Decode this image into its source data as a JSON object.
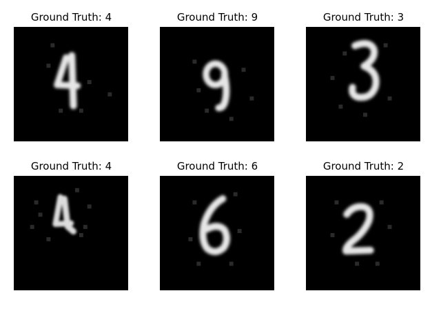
{
  "panels": [
    {
      "title": "Ground Truth: 4",
      "digit": "4"
    },
    {
      "title": "Ground Truth: 9",
      "digit": "9"
    },
    {
      "title": "Ground Truth: 3",
      "digit": "3"
    },
    {
      "title": "Ground Truth: 4",
      "digit": "4"
    },
    {
      "title": "Ground Truth: 6",
      "digit": "6"
    },
    {
      "title": "Ground Truth: 2",
      "digit": "2"
    }
  ],
  "colors": {
    "background": "#ffffff",
    "image_background": "#000000",
    "stroke": "#e8e8e8",
    "title": "#000000"
  }
}
